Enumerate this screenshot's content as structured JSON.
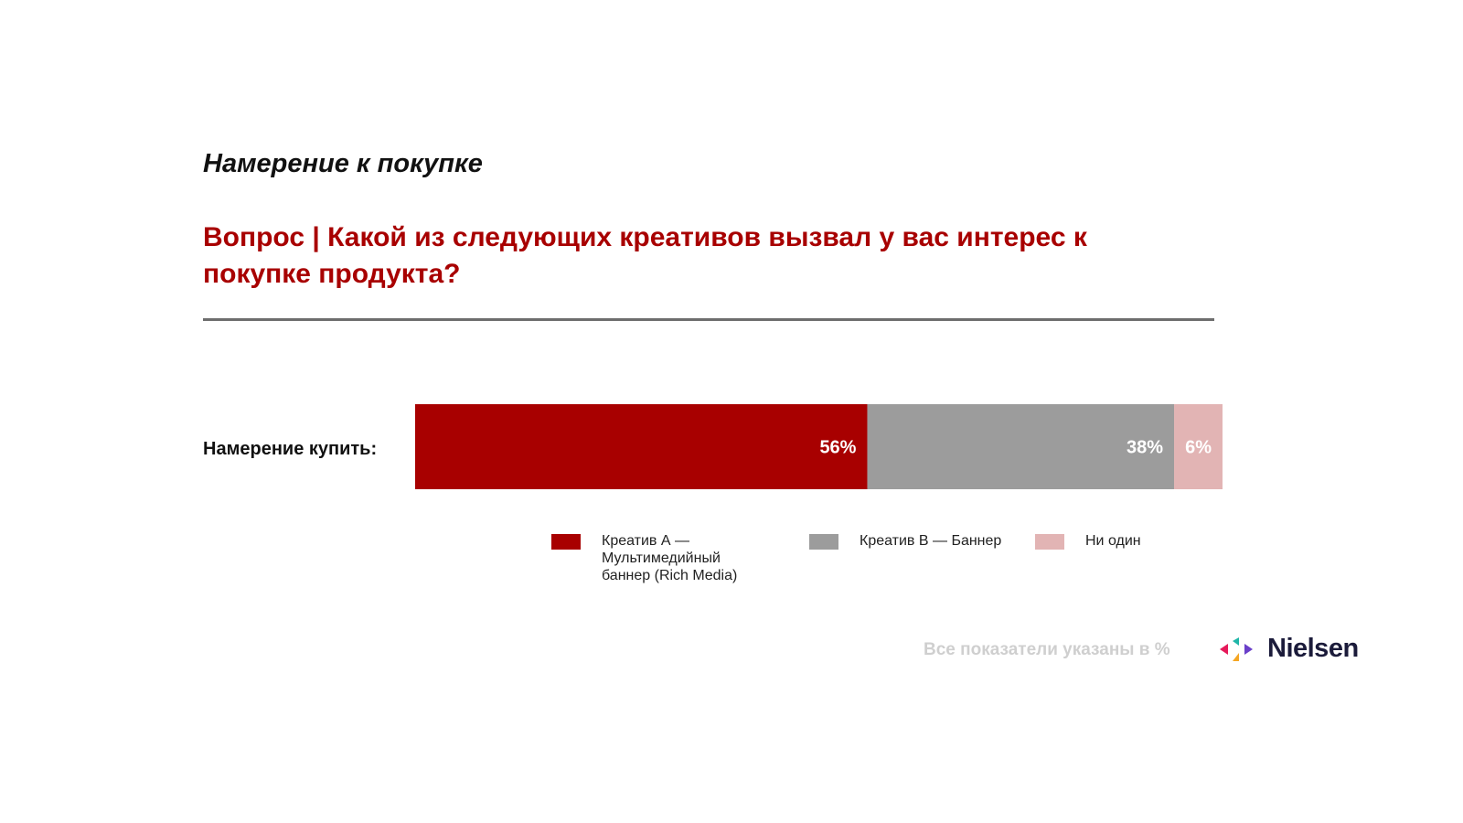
{
  "header": {
    "kicker": "Намерение к покупке",
    "question": "Вопрос | Какой из следующих креативов вызвал у вас интерес к покупке продукта?"
  },
  "chart_data": {
    "type": "bar",
    "orientation": "horizontal",
    "stacked": true,
    "categories": [
      "Намерение купить:"
    ],
    "series": [
      {
        "name": "Креатив А — Мультимедийный баннер (Rich Media)",
        "values": [
          56
        ],
        "label": "56%",
        "color": "#a80000"
      },
      {
        "name": "Креатив В — Баннер",
        "values": [
          38
        ],
        "label": "38%",
        "color": "#9c9c9c"
      },
      {
        "name": "Ни один",
        "values": [
          6
        ],
        "label": "6%",
        "color": "#e2b4b4"
      }
    ],
    "xlim": [
      0,
      100
    ],
    "legend_position": "bottom",
    "grid": false
  },
  "footnote": "Все показатели указаны в %",
  "brand": {
    "name": "Nielsen",
    "icon": "nielsen-logo-icon"
  }
}
